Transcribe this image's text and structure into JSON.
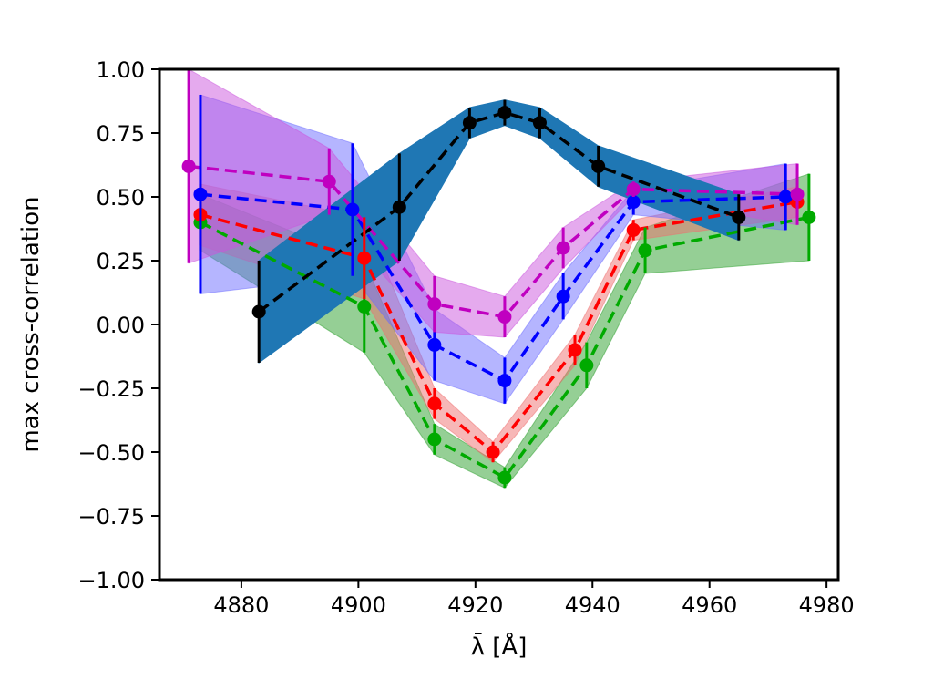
{
  "chart_data": {
    "type": "line",
    "xlabel": "λ̄ [Å]",
    "ylabel": "max cross-correlation",
    "xlim": [
      4866,
      4982
    ],
    "ylim": [
      -1.0,
      1.0
    ],
    "xticks": [
      "4880",
      "4900",
      "4920",
      "4940",
      "4960",
      "4980"
    ],
    "xtick_values": [
      4880,
      4900,
      4920,
      4940,
      4960,
      4980
    ],
    "yticks": [
      "−1.00",
      "−0.75",
      "−0.50",
      "−0.25",
      "0.00",
      "0.25",
      "0.50",
      "0.75",
      "1.00"
    ],
    "ytick_values": [
      -1.0,
      -0.75,
      -0.5,
      -0.25,
      0.0,
      0.25,
      0.5,
      0.75,
      1.0
    ],
    "grid": false,
    "series": [
      {
        "color": "#00aa00",
        "band_color": "#2ca02c",
        "x": [
          4873,
          4901,
          4913,
          4925,
          4939,
          4949,
          4977
        ],
        "y": [
          0.4,
          0.07,
          -0.45,
          -0.6,
          -0.16,
          0.29,
          0.42
        ],
        "err": [
          0.11,
          0.18,
          0.06,
          0.04,
          0.09,
          0.09,
          0.17
        ]
      },
      {
        "color": "#ff0000",
        "band_color": "#f07070",
        "x": [
          4873,
          4901,
          4913,
          4923,
          4937,
          4947,
          4975
        ],
        "y": [
          0.43,
          0.26,
          -0.31,
          -0.5,
          -0.1,
          0.37,
          0.48
        ],
        "err": [
          0.12,
          0.16,
          0.06,
          0.04,
          0.06,
          0.04,
          0.06
        ]
      },
      {
        "color": "#0000ff",
        "band_color": "#6b6bff",
        "x": [
          4873,
          4899,
          4913,
          4925,
          4935,
          4947,
          4973
        ],
        "y": [
          0.51,
          0.45,
          -0.08,
          -0.22,
          0.11,
          0.48,
          0.5
        ],
        "err": [
          0.39,
          0.26,
          0.14,
          0.09,
          0.09,
          0.05,
          0.13
        ]
      },
      {
        "color": "#c000c0",
        "band_color": "#cc55dd",
        "x": [
          4871,
          4895,
          4913,
          4925,
          4935,
          4947,
          4975
        ],
        "y": [
          0.62,
          0.56,
          0.08,
          0.03,
          0.3,
          0.53,
          0.51
        ],
        "err": [
          0.38,
          0.13,
          0.11,
          0.08,
          0.08,
          0.03,
          0.12
        ]
      },
      {
        "color": "#000000",
        "band_color": "#1f77b4",
        "x": [
          4883,
          4907,
          4919,
          4925,
          4931,
          4941,
          4965
        ],
        "y": [
          0.05,
          0.46,
          0.79,
          0.83,
          0.79,
          0.62,
          0.42
        ],
        "err": [
          0.2,
          0.21,
          0.06,
          0.05,
          0.06,
          0.08,
          0.09
        ]
      }
    ]
  }
}
